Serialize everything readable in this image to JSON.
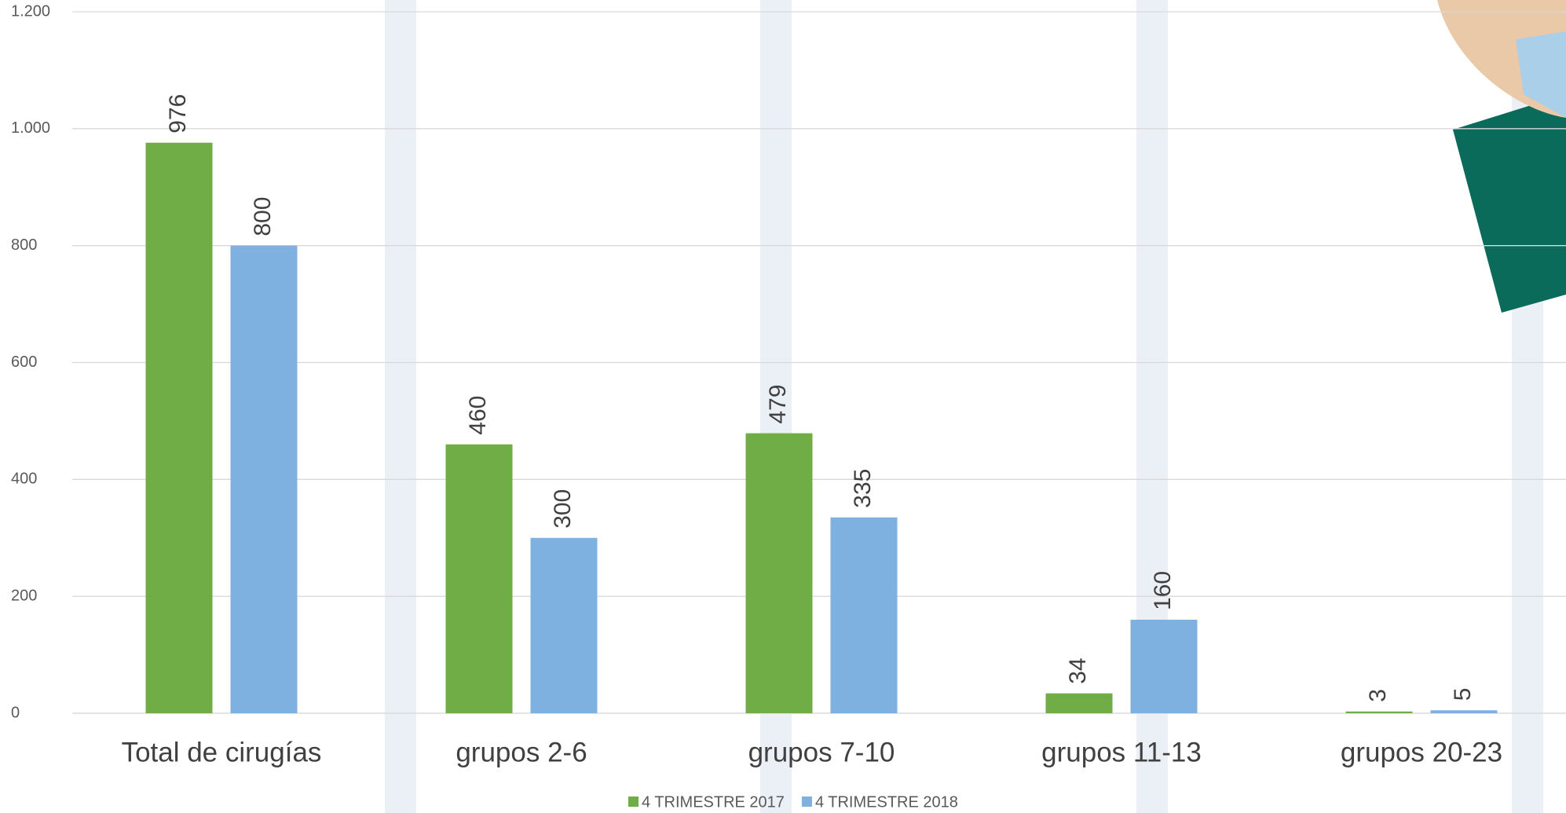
{
  "chart_data": {
    "type": "bar",
    "categories": [
      "Total de cirugías",
      "grupos 2-6",
      "grupos 7-10",
      "grupos 11-13",
      "grupos 20-23"
    ],
    "series": [
      {
        "name": "4 TRIMESTRE 2017",
        "color": "#70ad47",
        "values": [
          976,
          460,
          479,
          34,
          3
        ]
      },
      {
        "name": "4 TRIMESTRE 2018",
        "color": "#7eb0e0",
        "values": [
          800,
          300,
          335,
          160,
          5
        ]
      }
    ],
    "ylim": [
      0,
      1200
    ],
    "yticks": [
      0,
      200,
      400,
      600,
      800,
      {
        "value": 1000,
        "label": "1.000"
      },
      {
        "value": 1200,
        "label": "1.200"
      }
    ],
    "grid": true,
    "legend": "bottom"
  }
}
